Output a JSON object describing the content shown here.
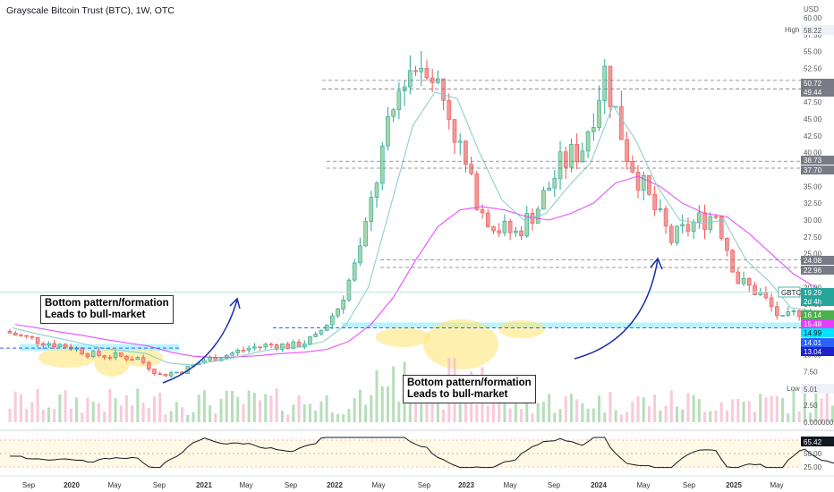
{
  "header": {
    "title": "Grayscale Bitcoin Trust (BTC), 1W, OTC"
  },
  "price_axis": {
    "currency": "USD",
    "ticks": [
      "60.00",
      "57.50",
      "55.00",
      "52.50",
      "50.00",
      "47.50",
      "45.00",
      "42.50",
      "40.00",
      "37.50",
      "35.00",
      "32.50",
      "30.00",
      "27.50",
      "25.00",
      "22.50",
      "20.00",
      "17.50",
      "15.00",
      "12.50",
      "10.00",
      "7.50",
      "5.00",
      "2.50",
      "0.000000"
    ],
    "high_label": "High",
    "high_value": "58.22",
    "low_label": "Low",
    "low_value": "5.01",
    "symbol_tag": "GBTC",
    "price_tags": [
      {
        "text": "50.72",
        "bg": "#787b86",
        "fg": "#ffffff"
      },
      {
        "text": "49.44",
        "bg": "#787b86",
        "fg": "#ffffff"
      },
      {
        "text": "38.73",
        "bg": "#787b86",
        "fg": "#ffffff"
      },
      {
        "text": "37.70",
        "bg": "#787b86",
        "fg": "#ffffff"
      },
      {
        "text": "24.08",
        "bg": "#787b86",
        "fg": "#ffffff"
      },
      {
        "text": "22.96",
        "bg": "#787b86",
        "fg": "#ffffff"
      },
      {
        "text": "19.29",
        "bg": "#26a69a",
        "fg": "#ffffff"
      },
      {
        "text": "2d 4h",
        "bg": "#26a69a",
        "fg": "#ffffff"
      },
      {
        "text": "16.14",
        "bg": "#4caf50",
        "fg": "#ffffff"
      },
      {
        "text": "15.48",
        "bg": "#e040fb",
        "fg": "#ffffff"
      },
      {
        "text": "14.99",
        "bg": "#00e5ff",
        "fg": "#131722"
      },
      {
        "text": "14.01",
        "bg": "#2962ff",
        "fg": "#ffffff"
      },
      {
        "text": "13.04",
        "bg": "#1e22c8",
        "fg": "#ffffff"
      }
    ]
  },
  "oscillator": {
    "ticks": [
      "75.00",
      "50.00",
      "25.00"
    ],
    "value_tag": "65.42"
  },
  "time_axis": {
    "labels": [
      {
        "text": "Sep",
        "bold": false
      },
      {
        "text": "2020",
        "bold": true
      },
      {
        "text": "May",
        "bold": false
      },
      {
        "text": "Sep",
        "bold": false
      },
      {
        "text": "2021",
        "bold": true
      },
      {
        "text": "May",
        "bold": false
      },
      {
        "text": "Sep",
        "bold": false
      },
      {
        "text": "2022",
        "bold": true
      },
      {
        "text": "May",
        "bold": false
      },
      {
        "text": "Sep",
        "bold": false
      },
      {
        "text": "2023",
        "bold": true
      },
      {
        "text": "May",
        "bold": false
      },
      {
        "text": "Sep",
        "bold": false
      },
      {
        "text": "2024",
        "bold": true
      },
      {
        "text": "May",
        "bold": false
      },
      {
        "text": "Sep",
        "bold": false
      },
      {
        "text": "2025",
        "bold": true
      },
      {
        "text": "May",
        "bold": false
      }
    ]
  },
  "annotations": {
    "callout_left": "Bottom pattern/formation\nLeads to bull-market",
    "callout_right": "Bottom pattern/formation\nLeads to bull-market"
  },
  "chart_data": {
    "type": "line",
    "title": "Grayscale Bitcoin Trust (BTC), 1W, OTC",
    "xlabel": "",
    "ylabel": "",
    "ylim": [
      0,
      62
    ],
    "x": [
      "2019-08",
      "2019-09",
      "2019-10",
      "2019-11",
      "2019-12",
      "2020-01",
      "2020-02",
      "2020-03",
      "2020-04",
      "2020-05",
      "2020-06",
      "2020-07",
      "2020-08",
      "2020-09",
      "2020-10",
      "2020-11",
      "2020-12",
      "2021-01",
      "2021-02",
      "2021-03",
      "2021-04",
      "2021-05",
      "2021-06",
      "2021-07",
      "2021-08",
      "2021-09",
      "2021-10",
      "2021-11",
      "2021-12",
      "2022-01",
      "2022-02",
      "2022-03",
      "2022-04",
      "2022-05",
      "2022-06",
      "2022-07",
      "2022-08",
      "2022-09",
      "2022-10",
      "2022-11",
      "2022-12",
      "2023-01",
      "2023-02",
      "2023-03",
      "2023-04",
      "2023-05",
      "2023-06"
    ],
    "series": [
      {
        "name": "",
        "color": "#26a69a",
        "values": [
          13.5,
          12.5,
          11.8,
          11.2,
          10.0,
          9.8,
          9.5,
          7.0,
          7.6,
          9.2,
          10.0,
          11.0,
          11.5,
          11.3,
          12.5,
          17.0,
          25.0,
          40.0,
          52.0,
          54.0,
          46.0,
          35.0,
          29.0,
          28.0,
          32.0,
          38.0,
          41.0,
          52.0,
          40.0,
          33.0,
          27.0,
          29.5,
          31.0,
          21.0,
          19.0,
          15.0,
          17.0,
          15.0,
          13.0,
          11.0,
          8.5,
          8.2,
          11.5,
          13.0,
          16.0,
          17.0,
          19.29
        ]
      },
      {
        "name": "",
        "color": "#e040fb",
        "values": [
          14.5,
          14.0,
          13.4,
          12.9,
          12.3,
          11.8,
          11.3,
          10.4,
          9.8,
          9.6,
          9.7,
          9.9,
          10.2,
          10.4,
          10.8,
          12.0,
          14.5,
          18.5,
          24.0,
          29.0,
          31.5,
          32.0,
          31.5,
          30.5,
          30.0,
          31.0,
          32.5,
          35.5,
          36.5,
          35.0,
          32.5,
          31.0,
          30.5,
          28.0,
          25.0,
          22.0,
          20.0,
          18.0,
          16.5,
          14.5,
          13.0,
          12.0,
          11.8,
          12.0,
          12.8,
          13.7,
          15.48
        ]
      },
      {
        "name": "",
        "color": "#80cbc4",
        "values": [
          14.0,
          13.2,
          12.5,
          11.8,
          11.0,
          10.6,
          10.2,
          8.8,
          8.5,
          9.0,
          9.6,
          10.4,
          11.0,
          11.2,
          12.0,
          14.5,
          20.0,
          32.0,
          44.0,
          49.0,
          48.0,
          40.0,
          33.0,
          30.0,
          31.0,
          35.0,
          38.5,
          47.0,
          42.0,
          35.0,
          30.0,
          29.5,
          30.0,
          24.0,
          21.0,
          17.0,
          16.5,
          15.5,
          14.0,
          12.0,
          10.0,
          9.5,
          10.5,
          12.0,
          14.5,
          16.0,
          16.14
        ]
      }
    ],
    "levels": [
      50.72,
      49.44,
      38.73,
      37.7,
      24.08,
      22.96,
      14.99,
      14.01,
      13.04
    ],
    "high": 58.22,
    "low": 5.01,
    "last": 19.29,
    "rsi": {
      "ylim": [
        20,
        85
      ],
      "levels": [
        75,
        50,
        25
      ],
      "last": 65.42
    },
    "grid": false,
    "legend": "none"
  },
  "colors": {
    "up": "#26a69a",
    "down": "#ef5350",
    "accent": "#2962ff",
    "ma_pink": "#e040fb",
    "ma_teal": "#80cbc4",
    "zone": "#00e5ff"
  }
}
